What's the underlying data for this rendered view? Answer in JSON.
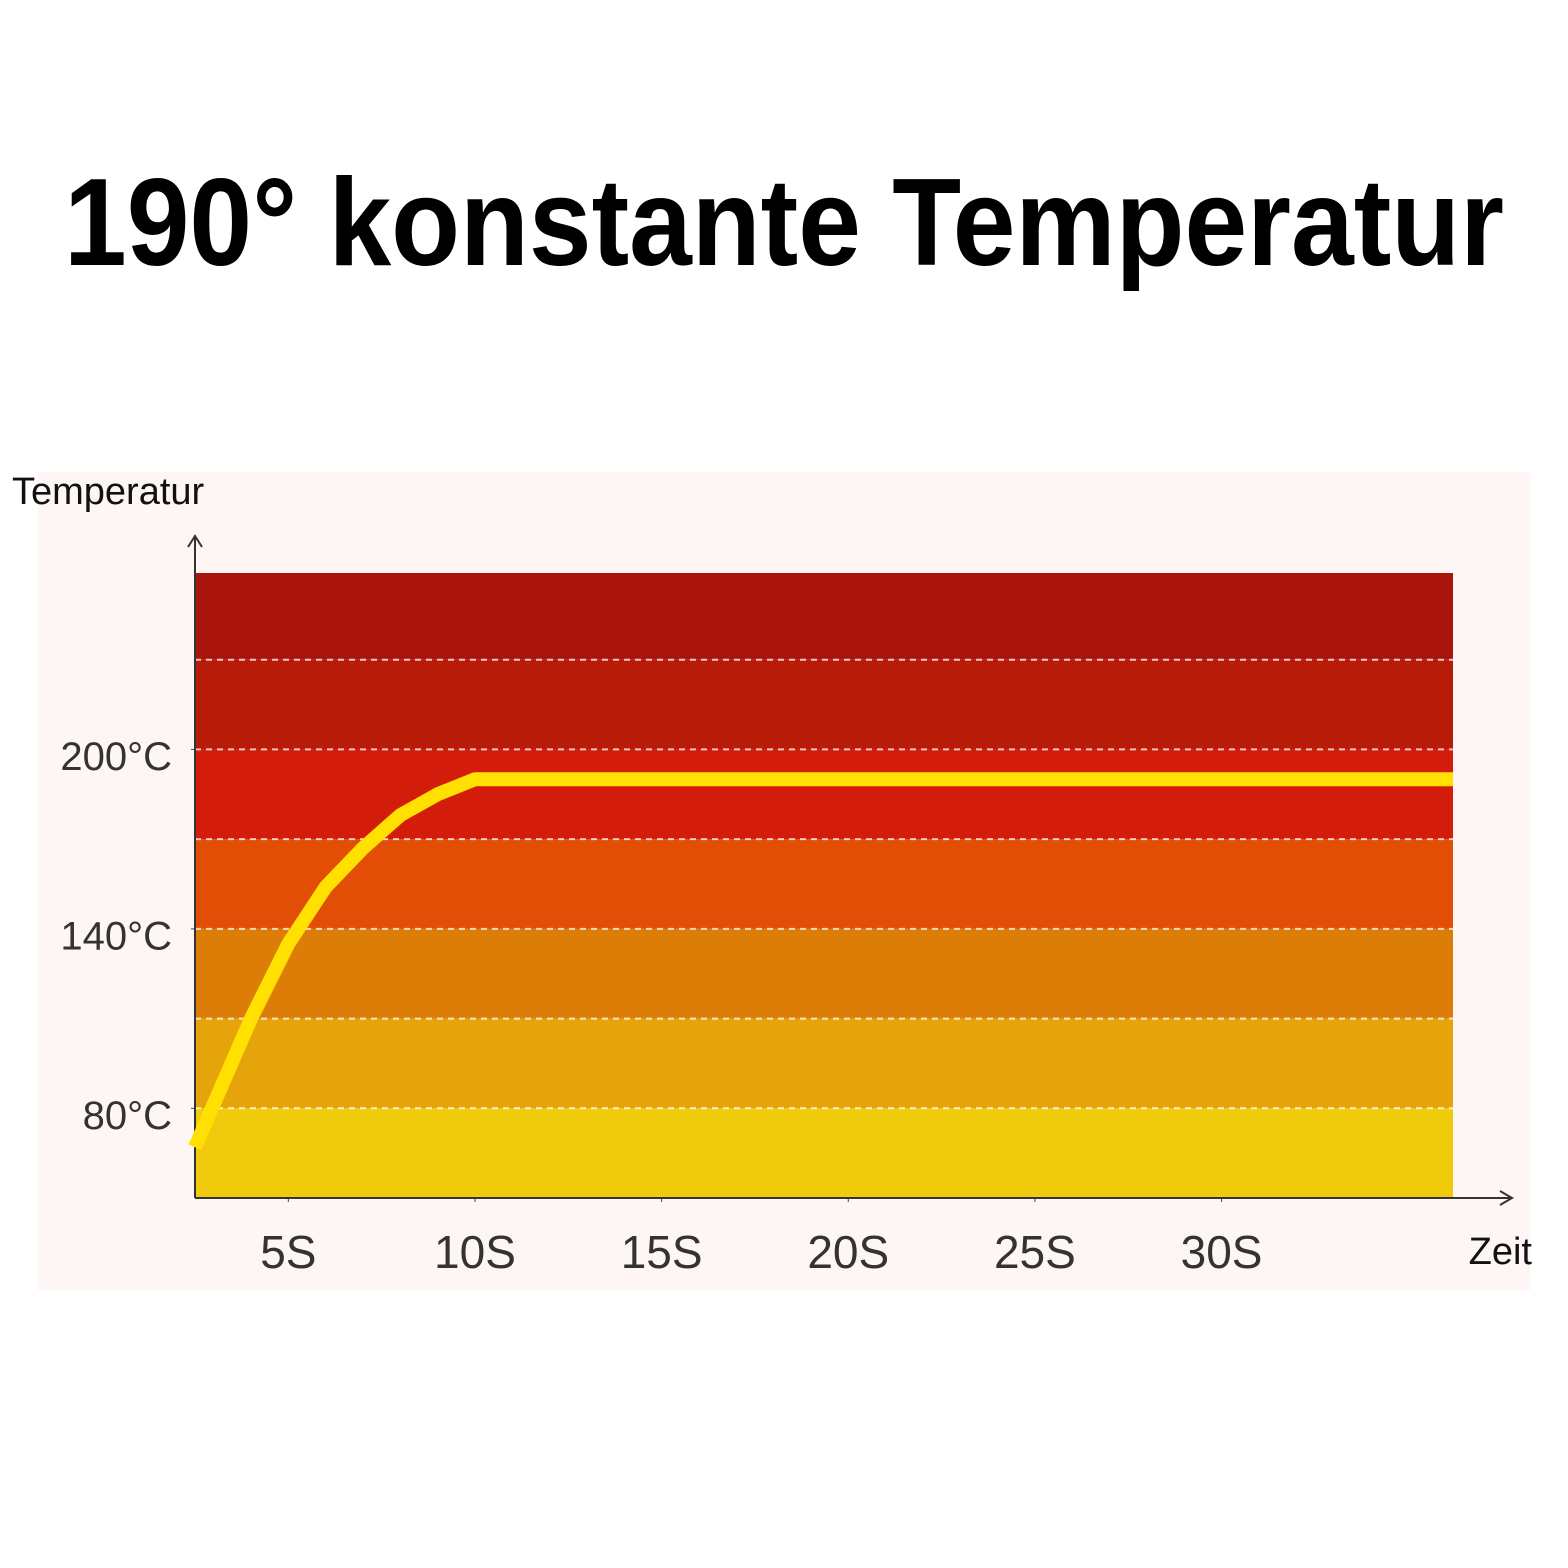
{
  "chart_data": {
    "type": "line",
    "title": "190° konstante Temperatur",
    "y_label": "Temperatur",
    "x_label": "Zeit",
    "xlim": [
      2.5,
      36.2
    ],
    "xticks": [
      {
        "value": 5,
        "label": "5S"
      },
      {
        "value": 10,
        "label": "10S"
      },
      {
        "value": 15,
        "label": "15S"
      },
      {
        "value": 20,
        "label": "20S"
      },
      {
        "value": 25,
        "label": "25S"
      },
      {
        "value": 30,
        "label": "30S"
      }
    ],
    "ylim": [
      50,
      259
    ],
    "yticks": [
      {
        "value": 80,
        "label": "80°C"
      },
      {
        "value": 140,
        "label": "140°C"
      },
      {
        "value": 200,
        "label": "200°C"
      }
    ],
    "gridlines": [
      80,
      110,
      140,
      170,
      200,
      230
    ],
    "band_colors": [
      "#f0cb0c",
      "#e5a40a",
      "#dc7d08",
      "#e24e05",
      "#d41c0a",
      "#b91b09",
      "#a9140d"
    ],
    "series": [
      {
        "color": "#ffe000",
        "x": [
          2.5,
          4,
          5,
          6,
          7,
          8,
          9,
          10,
          36.2
        ],
        "values": [
          67,
          110,
          135,
          154,
          167,
          178,
          185,
          190,
          190
        ]
      }
    ]
  }
}
